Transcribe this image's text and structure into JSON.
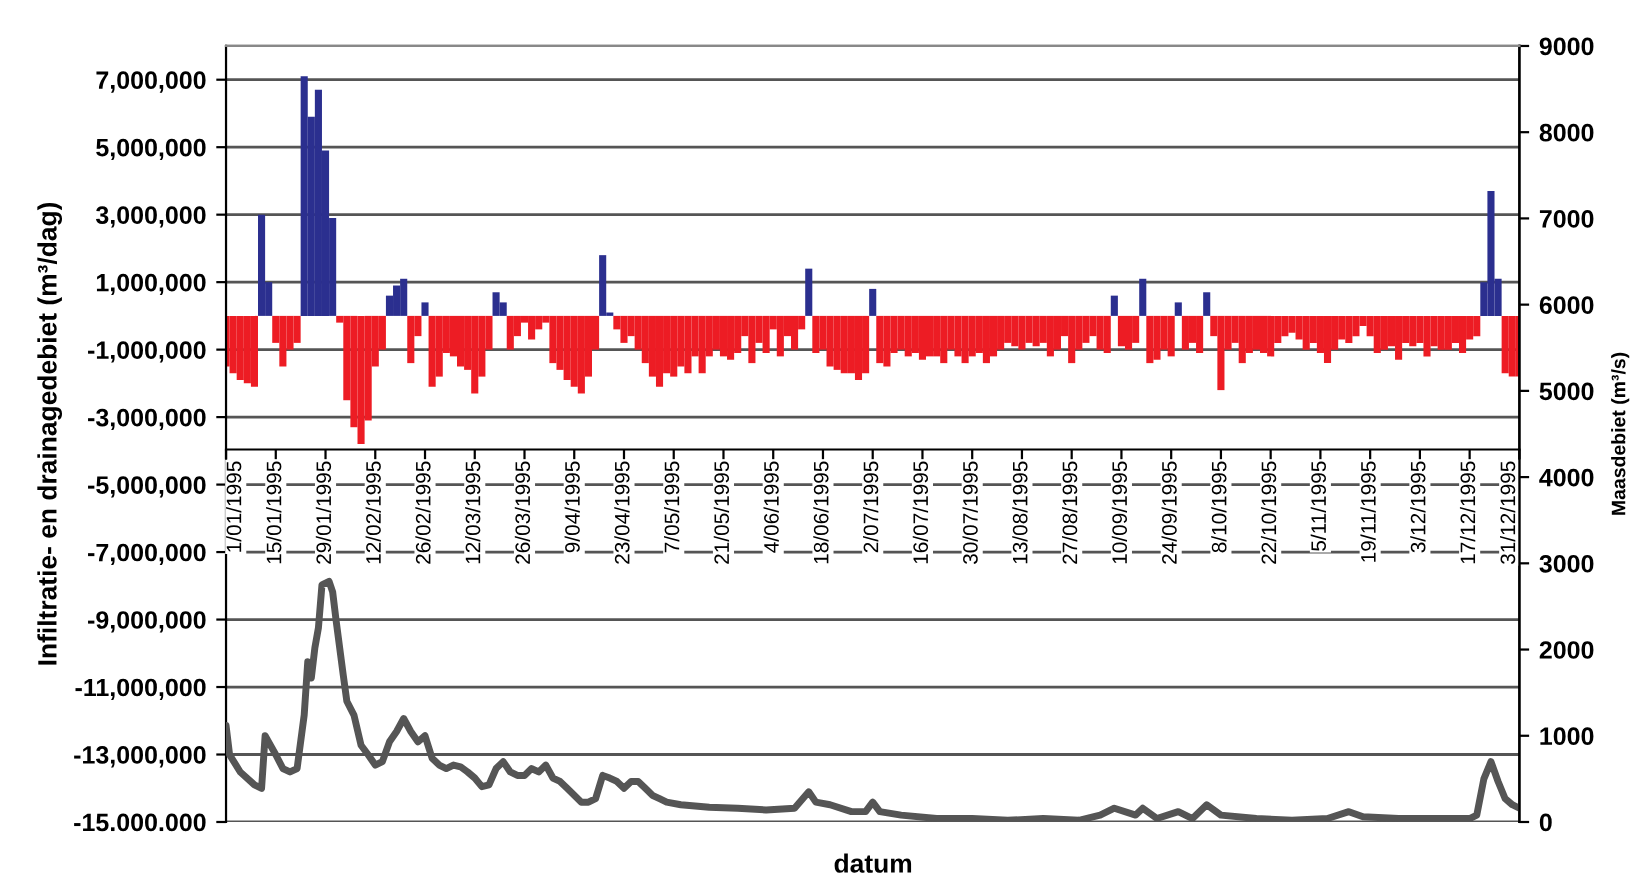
{
  "chart_data": {
    "type": "bar",
    "xlabel": "datum",
    "ylabel": "Infiltratie- en drainagedebiet (m³/dag)",
    "y2label": "Maasdebiet (m³/s)",
    "xlim": [
      "1995-01-01",
      "1995-12-31"
    ],
    "xticks": [
      {
        "value": "1995-01-01",
        "label": "1/01/1995"
      },
      {
        "value": "1995-01-15",
        "label": "15/01/1995"
      },
      {
        "value": "1995-01-29",
        "label": "29/01/1995"
      },
      {
        "value": "1995-02-12",
        "label": "12/02/1995"
      },
      {
        "value": "1995-02-26",
        "label": "26/02/1995"
      },
      {
        "value": "1995-03-12",
        "label": "12/03/1995"
      },
      {
        "value": "1995-03-26",
        "label": "26/03/1995"
      },
      {
        "value": "1995-04-09",
        "label": "9/04/1995"
      },
      {
        "value": "1995-04-23",
        "label": "23/04/1995"
      },
      {
        "value": "1995-05-07",
        "label": "7/05/1995"
      },
      {
        "value": "1995-05-21",
        "label": "21/05/1995"
      },
      {
        "value": "1995-06-04",
        "label": "4/06/1995"
      },
      {
        "value": "1995-06-18",
        "label": "18/06/1995"
      },
      {
        "value": "1995-07-02",
        "label": "2/07/1995"
      },
      {
        "value": "1995-07-16",
        "label": "16/07/1995"
      },
      {
        "value": "1995-07-30",
        "label": "30/07/1995"
      },
      {
        "value": "1995-08-13",
        "label": "13/08/1995"
      },
      {
        "value": "1995-08-27",
        "label": "27/08/1995"
      },
      {
        "value": "1995-09-10",
        "label": "10/09/1995"
      },
      {
        "value": "1995-09-24",
        "label": "24/09/1995"
      },
      {
        "value": "1995-10-08",
        "label": "8/10/1995"
      },
      {
        "value": "1995-10-22",
        "label": "22/10/1995"
      },
      {
        "value": "1995-11-05",
        "label": "5/11/1995"
      },
      {
        "value": "1995-11-19",
        "label": "19/11/1995"
      },
      {
        "value": "1995-12-03",
        "label": "3/12/1995"
      },
      {
        "value": "1995-12-17",
        "label": "17/12/1995"
      },
      {
        "value": "1995-12-31",
        "label": "31/12/1995"
      }
    ],
    "ylim": [
      -15000000,
      8000000
    ],
    "yticks": [
      {
        "value": -15000000,
        "label": "-15.000.000"
      },
      {
        "value": -13000000,
        "label": "-13,000,000"
      },
      {
        "value": -11000000,
        "label": "-11,000,000"
      },
      {
        "value": -9000000,
        "label": "-9,000,000"
      },
      {
        "value": -7000000,
        "label": "-7,000,000"
      },
      {
        "value": -5000000,
        "label": "-5,000,000"
      },
      {
        "value": -3000000,
        "label": "-3,000,000"
      },
      {
        "value": -1000000,
        "label": "-1,000,000"
      },
      {
        "value": 1000000,
        "label": "1,000,000"
      },
      {
        "value": 3000000,
        "label": "3,000,000"
      },
      {
        "value": 5000000,
        "label": "5,000,000"
      },
      {
        "value": 7000000,
        "label": "7,000,000"
      }
    ],
    "y2lim": [
      0,
      9000
    ],
    "y2ticks": [
      0,
      1000,
      2000,
      3000,
      4000,
      5000,
      6000,
      7000,
      8000,
      9000
    ],
    "grid": "y",
    "series": [
      {
        "color": "#ed1c24",
        "x": [
          "1995-01-01",
          "1995-01-03",
          "1995-01-05",
          "1995-01-07",
          "1995-01-09",
          "1995-01-15",
          "1995-01-17",
          "1995-01-19",
          "1995-01-21",
          "1995-02-02",
          "1995-02-04",
          "1995-02-06",
          "1995-02-08",
          "1995-02-10",
          "1995-02-12",
          "1995-02-14",
          "1995-02-22",
          "1995-02-24",
          "1995-02-28",
          "1995-03-02",
          "1995-03-04",
          "1995-03-06",
          "1995-03-08",
          "1995-03-10",
          "1995-03-12",
          "1995-03-14",
          "1995-03-16",
          "1995-03-22",
          "1995-03-24",
          "1995-03-26",
          "1995-03-28",
          "1995-03-30",
          "1995-04-01",
          "1995-04-03",
          "1995-04-05",
          "1995-04-07",
          "1995-04-09",
          "1995-04-11",
          "1995-04-13",
          "1995-04-15",
          "1995-04-21",
          "1995-04-23",
          "1995-04-25",
          "1995-04-27",
          "1995-04-29",
          "1995-05-01",
          "1995-05-03",
          "1995-05-05",
          "1995-05-07",
          "1995-05-09",
          "1995-05-11",
          "1995-05-13",
          "1995-05-15",
          "1995-05-17",
          "1995-05-19",
          "1995-05-21",
          "1995-05-23",
          "1995-05-25",
          "1995-05-27",
          "1995-05-29",
          "1995-05-31",
          "1995-06-02",
          "1995-06-04",
          "1995-06-06",
          "1995-06-08",
          "1995-06-10",
          "1995-06-12",
          "1995-06-16",
          "1995-06-18",
          "1995-06-20",
          "1995-06-22",
          "1995-06-24",
          "1995-06-26",
          "1995-06-28",
          "1995-06-30",
          "1995-07-04",
          "1995-07-06",
          "1995-07-08",
          "1995-07-10",
          "1995-07-12",
          "1995-07-14",
          "1995-07-16",
          "1995-07-18",
          "1995-07-20",
          "1995-07-22",
          "1995-07-24",
          "1995-07-26",
          "1995-07-28",
          "1995-07-30",
          "1995-08-01",
          "1995-08-03",
          "1995-08-05",
          "1995-08-07",
          "1995-08-09",
          "1995-08-11",
          "1995-08-13",
          "1995-08-15",
          "1995-08-17",
          "1995-08-19",
          "1995-08-21",
          "1995-08-23",
          "1995-08-25",
          "1995-08-27",
          "1995-08-29",
          "1995-08-31",
          "1995-09-02",
          "1995-09-04",
          "1995-09-06",
          "1995-09-10",
          "1995-09-12",
          "1995-09-14",
          "1995-09-18",
          "1995-09-20",
          "1995-09-22",
          "1995-09-24",
          "1995-09-28",
          "1995-09-30",
          "1995-10-02",
          "1995-10-06",
          "1995-10-08",
          "1995-10-10",
          "1995-10-12",
          "1995-10-14",
          "1995-10-16",
          "1995-10-18",
          "1995-10-20",
          "1995-10-22",
          "1995-10-24",
          "1995-10-26",
          "1995-10-28",
          "1995-10-30",
          "1995-11-01",
          "1995-11-03",
          "1995-11-05",
          "1995-11-07",
          "1995-11-09",
          "1995-11-11",
          "1995-11-13",
          "1995-11-15",
          "1995-11-17",
          "1995-11-19",
          "1995-11-21",
          "1995-11-23",
          "1995-11-25",
          "1995-11-27",
          "1995-11-29",
          "1995-12-01",
          "1995-12-03",
          "1995-12-05",
          "1995-12-07",
          "1995-12-09",
          "1995-12-11",
          "1995-12-13",
          "1995-12-15",
          "1995-12-17",
          "1995-12-19",
          "1995-12-27",
          "1995-12-29",
          "1995-12-31"
        ],
        "values": [
          -1500000,
          -1700000,
          -1900000,
          -2000000,
          -2100000,
          -800000,
          -1500000,
          -1000000,
          -800000,
          -200000,
          -2500000,
          -3300000,
          -3800000,
          -3100000,
          -1500000,
          -1000000,
          -1400000,
          -600000,
          -2100000,
          -1800000,
          -1100000,
          -1200000,
          -1500000,
          -1600000,
          -2300000,
          -1800000,
          -1000000,
          -1000000,
          -600000,
          -200000,
          -700000,
          -400000,
          -200000,
          -1400000,
          -1600000,
          -1900000,
          -2100000,
          -2300000,
          -1800000,
          -1000000,
          -400000,
          -800000,
          -600000,
          -1000000,
          -1400000,
          -1800000,
          -2100000,
          -1700000,
          -1800000,
          -1500000,
          -1700000,
          -1200000,
          -1700000,
          -1200000,
          -1000000,
          -1200000,
          -1300000,
          -1100000,
          -600000,
          -1400000,
          -800000,
          -1100000,
          -400000,
          -1200000,
          -600000,
          -1000000,
          -400000,
          -1100000,
          -1000000,
          -1500000,
          -1600000,
          -1700000,
          -1700000,
          -1900000,
          -1700000,
          -1400000,
          -1500000,
          -1100000,
          -1000000,
          -1200000,
          -1100000,
          -1300000,
          -1200000,
          -1200000,
          -1400000,
          -1000000,
          -1200000,
          -1400000,
          -1200000,
          -1100000,
          -1400000,
          -1200000,
          -1000000,
          -800000,
          -900000,
          -1000000,
          -800000,
          -900000,
          -800000,
          -1200000,
          -1000000,
          -600000,
          -1400000,
          -1000000,
          -800000,
          -600000,
          -1000000,
          -1100000,
          -900000,
          -1000000,
          -800000,
          -1400000,
          -1300000,
          -1000000,
          -1200000,
          -1000000,
          -800000,
          -1100000,
          -600000,
          -2200000,
          -1000000,
          -800000,
          -1400000,
          -1100000,
          -1000000,
          -1100000,
          -1200000,
          -800000,
          -600000,
          -500000,
          -700000,
          -1000000,
          -800000,
          -1100000,
          -1400000,
          -1000000,
          -700000,
          -800000,
          -600000,
          -300000,
          -600000,
          -1100000,
          -1000000,
          -900000,
          -1300000,
          -800000,
          -900000,
          -800000,
          -1200000,
          -900000,
          -1000000,
          -1000000,
          -800000,
          -1100000,
          -700000,
          -600000,
          -1700000,
          -1800000,
          -1800000
        ]
      },
      {
        "color": "#2b2f8f",
        "x": [
          "1995-01-11",
          "1995-01-13",
          "1995-01-23",
          "1995-01-25",
          "1995-01-27",
          "1995-01-29",
          "1995-01-31",
          "1995-02-16",
          "1995-02-18",
          "1995-02-20",
          "1995-02-26",
          "1995-03-18",
          "1995-03-20",
          "1995-04-17",
          "1995-04-19",
          "1995-06-14",
          "1995-07-02",
          "1995-09-08",
          "1995-09-16",
          "1995-09-26",
          "1995-10-04",
          "1995-12-21",
          "1995-12-23",
          "1995-12-25"
        ],
        "values": [
          3000000,
          1000000,
          7100000,
          5900000,
          6700000,
          4900000,
          2900000,
          600000,
          900000,
          1100000,
          400000,
          700000,
          400000,
          1800000,
          100000,
          1400000,
          800000,
          600000,
          1100000,
          400000,
          700000,
          1000000,
          3700000,
          1100000
        ]
      },
      {
        "type": "line",
        "axis": "y2",
        "color": "#555555",
        "x": [
          "1995-01-01",
          "1995-01-02",
          "1995-01-05",
          "1995-01-09",
          "1995-01-11",
          "1995-01-12",
          "1995-01-15",
          "1995-01-17",
          "1995-01-19",
          "1995-01-21",
          "1995-01-23",
          "1995-01-24",
          "1995-01-25",
          "1995-01-26",
          "1995-01-27",
          "1995-01-28",
          "1995-01-30",
          "1995-01-31",
          "1995-02-01",
          "1995-02-03",
          "1995-02-04",
          "1995-02-06",
          "1995-02-08",
          "1995-02-10",
          "1995-02-12",
          "1995-02-14",
          "1995-02-16",
          "1995-02-18",
          "1995-02-20",
          "1995-02-22",
          "1995-02-24",
          "1995-02-26",
          "1995-02-28",
          "1995-03-02",
          "1995-03-04",
          "1995-03-06",
          "1995-03-08",
          "1995-03-10",
          "1995-03-12",
          "1995-03-14",
          "1995-03-16",
          "1995-03-18",
          "1995-03-20",
          "1995-03-22",
          "1995-03-24",
          "1995-03-26",
          "1995-03-28",
          "1995-03-30",
          "1995-04-01",
          "1995-04-03",
          "1995-04-05",
          "1995-04-07",
          "1995-04-09",
          "1995-04-11",
          "1995-04-13",
          "1995-04-15",
          "1995-04-17",
          "1995-04-19",
          "1995-04-21",
          "1995-04-23",
          "1995-04-25",
          "1995-04-27",
          "1995-04-29",
          "1995-05-01",
          "1995-05-03",
          "1995-05-05",
          "1995-05-09",
          "1995-05-17",
          "1995-05-25",
          "1995-06-02",
          "1995-06-10",
          "1995-06-14",
          "1995-06-16",
          "1995-06-20",
          "1995-06-26",
          "1995-06-30",
          "1995-07-02",
          "1995-07-04",
          "1995-07-10",
          "1995-07-20",
          "1995-07-30",
          "1995-08-09",
          "1995-08-19",
          "1995-08-29",
          "1995-09-04",
          "1995-09-08",
          "1995-09-14",
          "1995-09-16",
          "1995-09-20",
          "1995-09-26",
          "1995-09-30",
          "1995-10-04",
          "1995-10-08",
          "1995-10-18",
          "1995-10-28",
          "1995-11-07",
          "1995-11-13",
          "1995-11-17",
          "1995-11-27",
          "1995-12-07",
          "1995-12-17",
          "1995-12-19",
          "1995-12-21",
          "1995-12-23",
          "1995-12-25",
          "1995-12-27",
          "1995-12-29",
          "1995-12-31"
        ],
        "values": [
          1120,
          780,
          580,
          430,
          390,
          1000,
          780,
          620,
          580,
          620,
          1240,
          1860,
          1670,
          2020,
          2250,
          2750,
          2790,
          2670,
          2330,
          1700,
          1400,
          1240,
          890,
          780,
          660,
          700,
          930,
          1050,
          1200,
          1050,
          930,
          1000,
          740,
          660,
          620,
          660,
          640,
          580,
          510,
          410,
          430,
          620,
          700,
          580,
          540,
          540,
          620,
          580,
          660,
          510,
          470,
          390,
          310,
          230,
          230,
          270,
          540,
          510,
          470,
          390,
          470,
          470,
          390,
          310,
          270,
          230,
          200,
          170,
          160,
          140,
          160,
          350,
          230,
          200,
          120,
          120,
          230,
          120,
          80,
          40,
          40,
          20,
          40,
          20,
          80,
          160,
          80,
          160,
          40,
          120,
          40,
          200,
          80,
          40,
          20,
          40,
          120,
          60,
          40,
          40,
          40,
          80,
          500,
          700,
          470,
          270,
          200,
          160
        ]
      }
    ]
  }
}
